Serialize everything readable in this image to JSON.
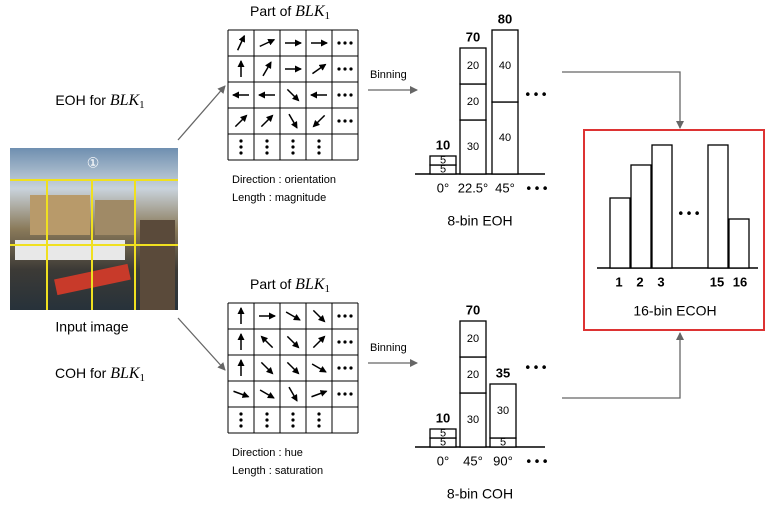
{
  "input_image": {
    "region_label": "①",
    "caption": "Input image"
  },
  "block": {
    "name": "BLK",
    "subscript": "1"
  },
  "branches": [
    {
      "label": "EOH for",
      "grid_title": "Part of",
      "notes": [
        "Direction : orientation",
        "Length : magnitude"
      ],
      "binning": "Binning",
      "histogram": {
        "title": "8-bin EOH",
        "categories": [
          "0°",
          "22.5°",
          "45°"
        ],
        "ellipsis": "• • •",
        "bars": [
          {
            "total": 10,
            "segments": [
              5,
              5
            ]
          },
          {
            "total": 70,
            "segments": [
              30,
              20,
              20
            ]
          },
          {
            "total": 80,
            "segments": [
              40,
              40
            ]
          }
        ]
      }
    },
    {
      "label": "COH for",
      "grid_title": "Part of",
      "notes": [
        "Direction : hue",
        "Length : saturation"
      ],
      "binning": "Binning",
      "histogram": {
        "title": "8-bin COH",
        "categories": [
          "0°",
          "45°",
          "90°"
        ],
        "ellipsis": "• • •",
        "bars": [
          {
            "total": 10,
            "segments": [
              5,
              5
            ]
          },
          {
            "total": 70,
            "segments": [
              30,
              20,
              20
            ]
          },
          {
            "total": 35,
            "segments": [
              5,
              30
            ]
          }
        ]
      }
    }
  ],
  "ecoh": {
    "title": "16-bin ECOH",
    "labels": [
      "1",
      "2",
      "3",
      "15",
      "16"
    ],
    "ellipsis": "• • •"
  }
}
